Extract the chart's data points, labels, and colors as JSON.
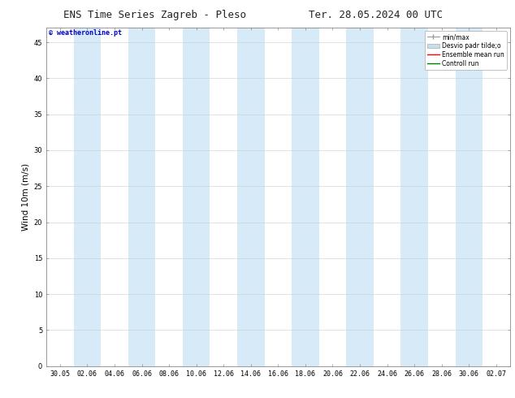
{
  "title_left": "ENS Time Series Zagreb - Pleso",
  "title_right": "Ter. 28.05.2024 00 UTC",
  "ylabel": "Wind 10m (m/s)",
  "watermark": "© weatheronline.pt",
  "watermark_color": "#0000cc",
  "background_color": "#ffffff",
  "plot_bg_color": "#ffffff",
  "ylim": [
    0,
    47
  ],
  "yticks": [
    0,
    5,
    10,
    15,
    20,
    25,
    30,
    35,
    40,
    45
  ],
  "xtick_labels": [
    "30.05",
    "02.06",
    "04.06",
    "06.06",
    "08.06",
    "10.06",
    "12.06",
    "14.06",
    "16.06",
    "18.06",
    "20.06",
    "22.06",
    "24.06",
    "26.06",
    "28.06",
    "30.06",
    "02.07"
  ],
  "shaded_bands_x": [
    1,
    3,
    5,
    7,
    9,
    11,
    13,
    15
  ],
  "shaded_color": "#d6eaf8",
  "legend_items": [
    {
      "label": "min/max",
      "type": "errorbar",
      "color": "#aaaaaa"
    },
    {
      "label": "Desvio padr tilde;o",
      "type": "box",
      "color": "#c8dff0"
    },
    {
      "label": "Ensemble mean run",
      "type": "line",
      "color": "#ff0000"
    },
    {
      "label": "Controll run",
      "type": "line",
      "color": "#008000"
    }
  ],
  "title_fontsize": 9,
  "tick_fontsize": 6,
  "ylabel_fontsize": 7.5,
  "watermark_fontsize": 6,
  "legend_fontsize": 5.5,
  "border_color": "#888888"
}
